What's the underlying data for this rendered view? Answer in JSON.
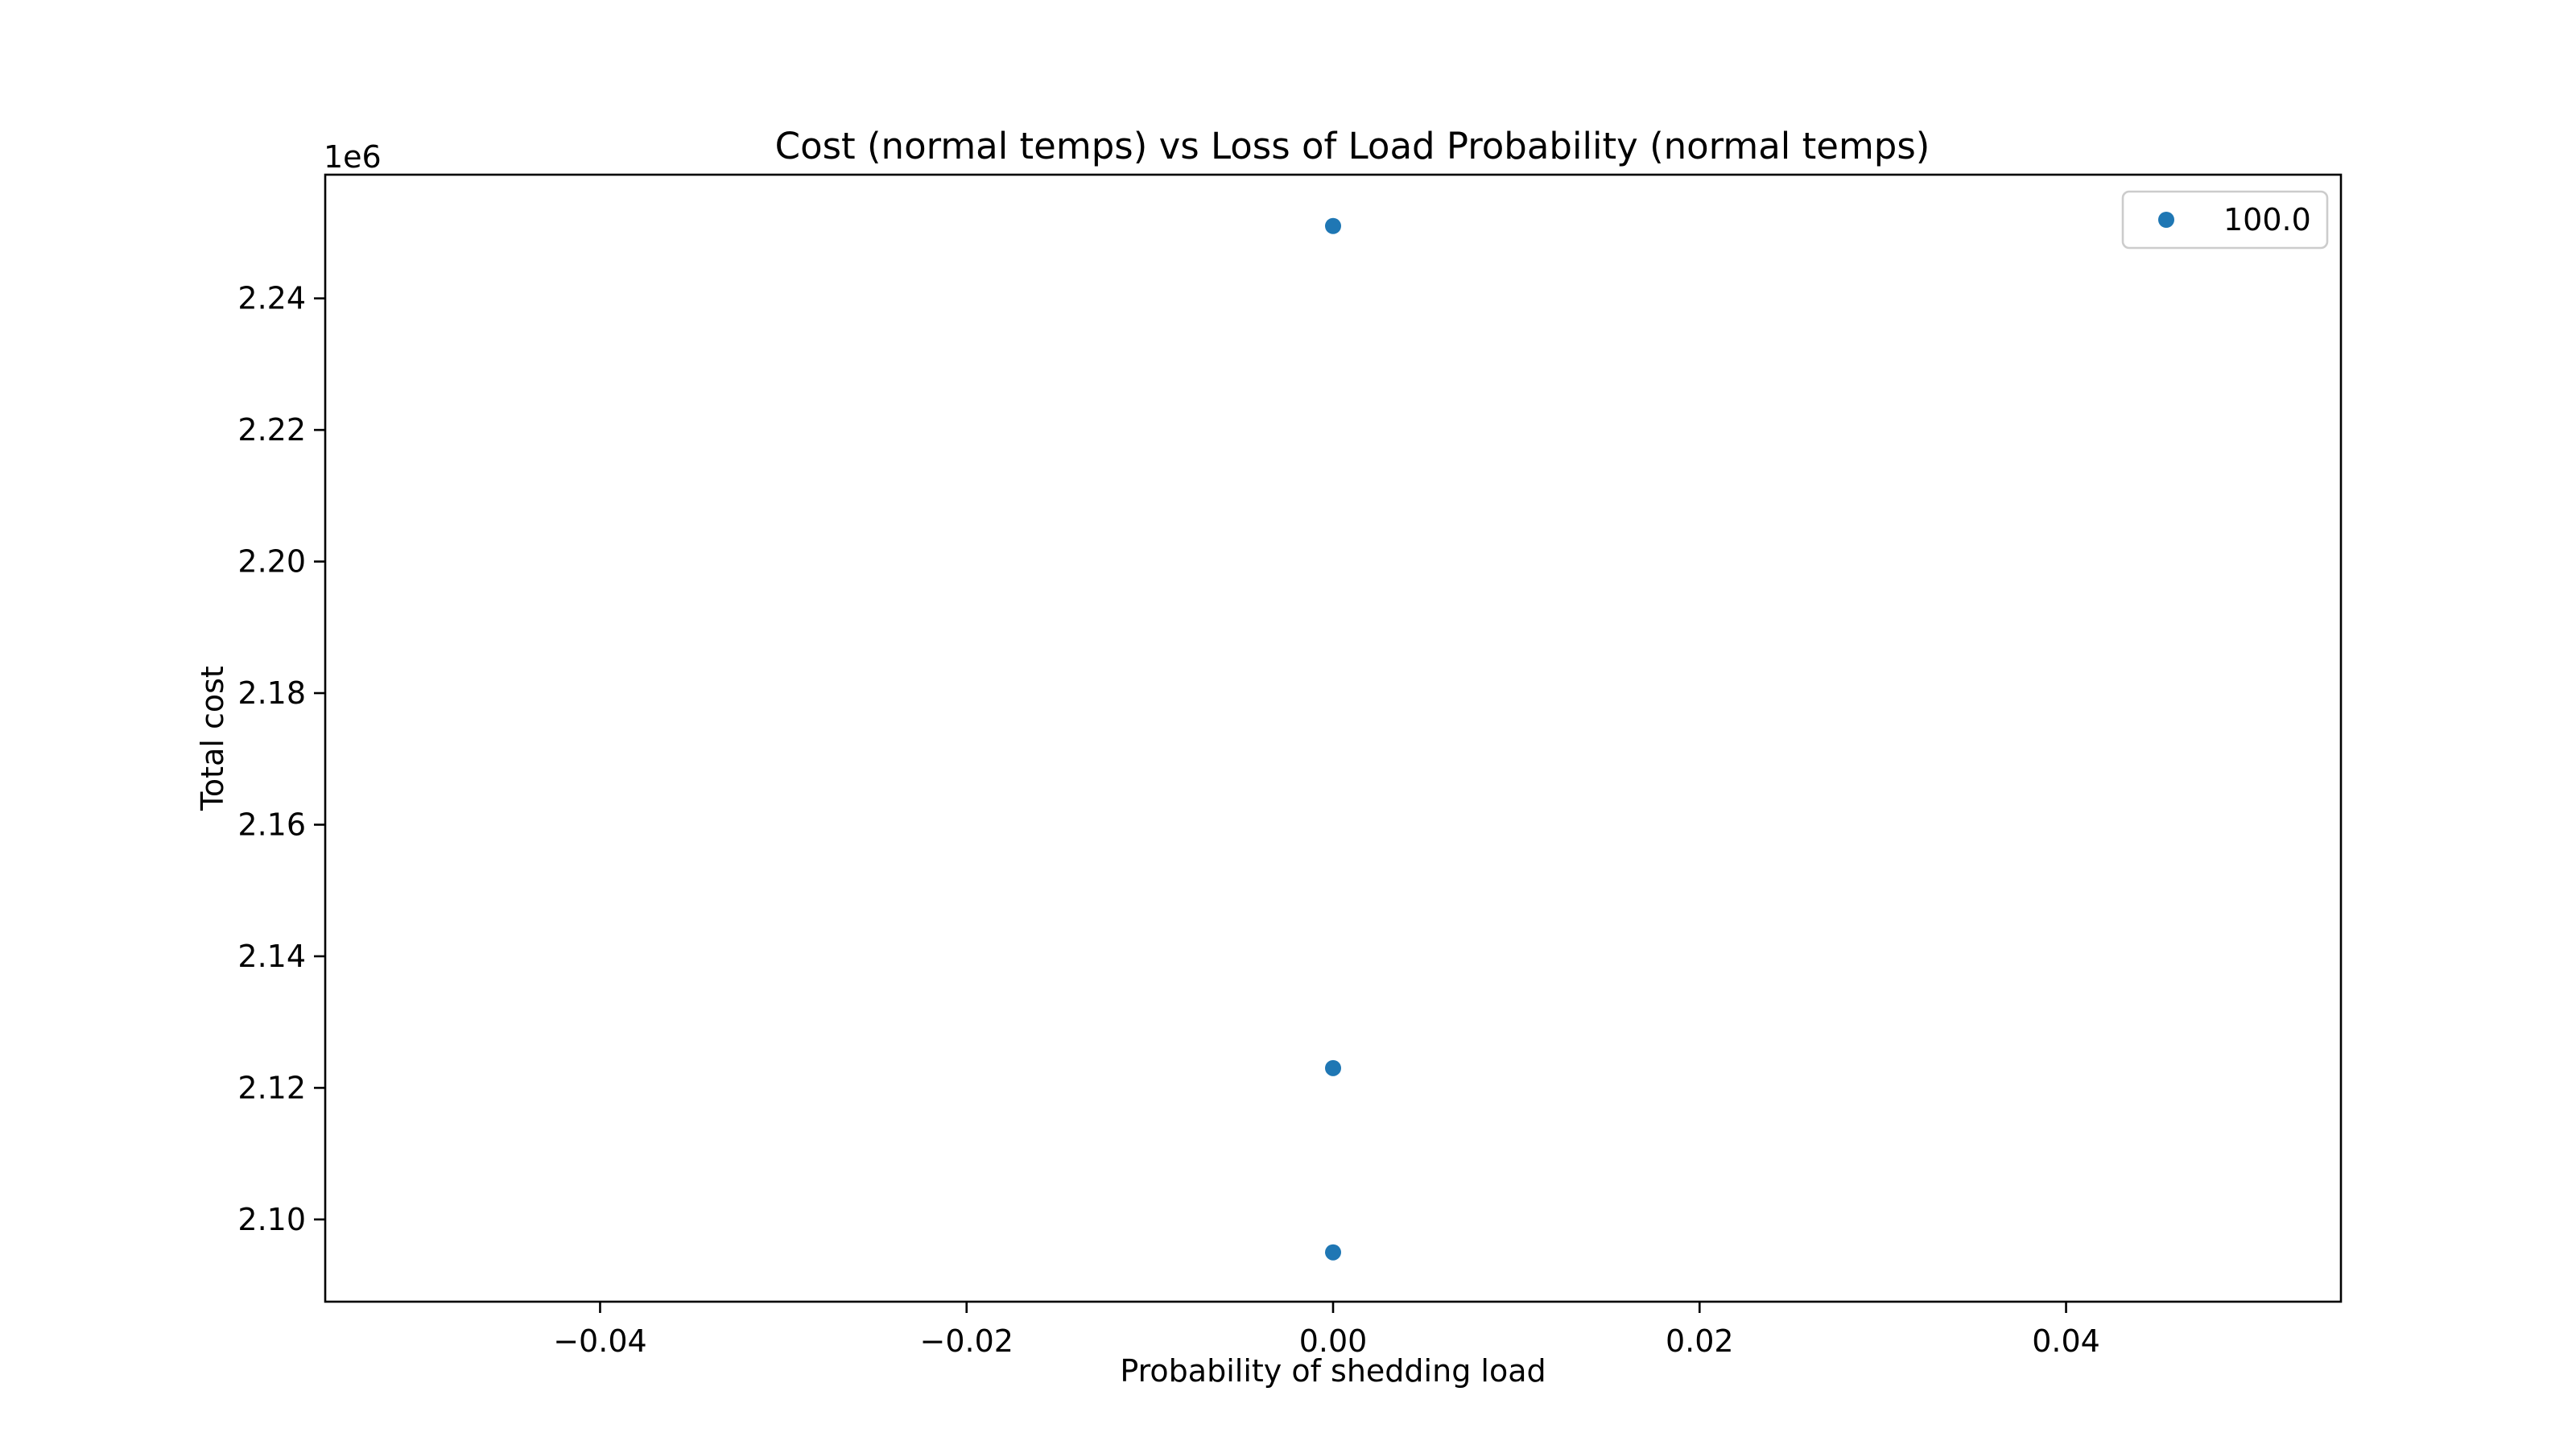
{
  "chart_data": {
    "type": "scatter",
    "title": "Cost (normal temps) vs Loss of Load Probability (normal temps)",
    "xlabel": "Probability of shedding load",
    "ylabel": "Total cost",
    "y_offset_label": "1e6",
    "y_scale_factor": 1000000,
    "xlim": [
      -0.055,
      0.055
    ],
    "ylim": [
      2.0875,
      2.2588
    ],
    "x_ticks": [
      -0.04,
      -0.02,
      0.0,
      0.02,
      0.04
    ],
    "x_tick_labels": [
      "−0.04",
      "−0.02",
      "0.00",
      "0.02",
      "0.04"
    ],
    "y_ticks": [
      2.1,
      2.12,
      2.14,
      2.16,
      2.18,
      2.2,
      2.22,
      2.24
    ],
    "y_tick_labels": [
      "2.10",
      "2.12",
      "2.14",
      "2.16",
      "2.18",
      "2.20",
      "2.22",
      "2.24"
    ],
    "grid": false,
    "legend_position": "upper right",
    "series": [
      {
        "name": "100.0",
        "color": "#1f77b4",
        "marker": "circle",
        "points": [
          {
            "x": 0.0,
            "y": 2.251
          },
          {
            "x": 0.0,
            "y": 2.123
          },
          {
            "x": 0.0,
            "y": 2.095
          }
        ]
      }
    ]
  }
}
